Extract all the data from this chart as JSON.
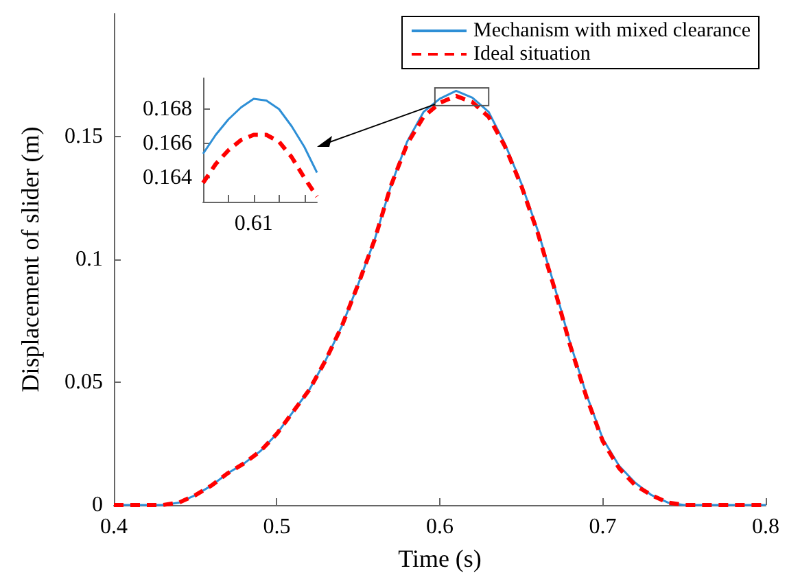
{
  "chart_data": [
    {
      "type": "line",
      "xlabel": "Time (s)",
      "ylabel": "Displacement of slider (m)",
      "xlim": [
        0.4,
        0.8
      ],
      "xticks": [
        0.4,
        0.5,
        0.6,
        0.7,
        0.8
      ],
      "ylim": [
        0,
        0.2
      ],
      "yticks": [
        0,
        0.05,
        0.1,
        0.15
      ],
      "grid": false,
      "legend": "top right",
      "marker": "none",
      "x": [
        0.4,
        0.42,
        0.43,
        0.44,
        0.45,
        0.46,
        0.47,
        0.48,
        0.49,
        0.5,
        0.51,
        0.52,
        0.53,
        0.54,
        0.55,
        0.56,
        0.57,
        0.58,
        0.59,
        0.6,
        0.61,
        0.62,
        0.63,
        0.64,
        0.65,
        0.66,
        0.67,
        0.68,
        0.69,
        0.7,
        0.71,
        0.72,
        0.73,
        0.74,
        0.75,
        0.8
      ],
      "series": [
        {
          "name": "Mechanism with mixed clearance",
          "color": "#2e8fd6",
          "line_style": "solid",
          "values": [
            0,
            0,
            0,
            0.001,
            0.004,
            0.008,
            0.013,
            0.017,
            0.022,
            0.029,
            0.038,
            0.047,
            0.059,
            0.073,
            0.09,
            0.108,
            0.13,
            0.148,
            0.16,
            0.1654,
            0.1686,
            0.1658,
            0.16,
            0.147,
            0.131,
            0.112,
            0.09,
            0.066,
            0.045,
            0.027,
            0.016,
            0.009,
            0.004,
            0.001,
            0,
            0
          ]
        },
        {
          "name": "Ideal situation",
          "color": "#ff0000",
          "line_style": "dashed",
          "values": [
            0,
            0,
            0,
            0.001,
            0.004,
            0.008,
            0.013,
            0.017,
            0.022,
            0.029,
            0.038,
            0.047,
            0.059,
            0.073,
            0.09,
            0.108,
            0.13,
            0.147,
            0.158,
            0.1637,
            0.1665,
            0.164,
            0.158,
            0.146,
            0.13,
            0.111,
            0.089,
            0.065,
            0.044,
            0.026,
            0.015,
            0.008,
            0.004,
            0.001,
            0,
            0
          ]
        }
      ]
    },
    {
      "type": "line",
      "categories": [
        null,
        null,
        null,
        null,
        "0.61",
        null,
        null,
        null,
        null,
        null
      ],
      "ylim": [
        0.1626,
        0.1698
      ],
      "yticks": [
        0.164,
        0.166,
        0.168
      ],
      "grid": false,
      "marker": "none",
      "series": [
        {
          "color": "#2e8fd6",
          "line_style": "solid",
          "values": [
            0.1654,
            0.1665,
            0.1674,
            0.1681,
            0.1686,
            0.1685,
            0.168,
            0.167,
            0.1658,
            0.1643
          ]
        },
        {
          "color": "#ff0000",
          "line_style": "dashed",
          "values": [
            0.1637,
            0.1648,
            0.1656,
            0.1662,
            0.1665,
            0.1665,
            0.1661,
            0.1652,
            0.164,
            0.1629
          ]
        }
      ]
    }
  ]
}
